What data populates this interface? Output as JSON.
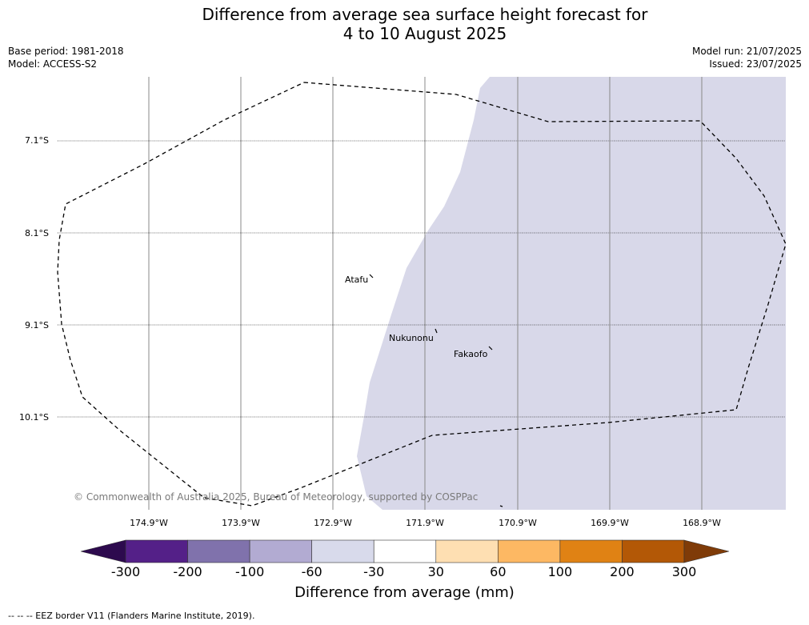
{
  "title": {
    "line1": "Difference from average sea surface height forecast for",
    "line2": "4 to 10 August 2025"
  },
  "meta": {
    "base_period": "Base period: 1981-2018",
    "model": "Model: ACCESS-S2",
    "model_run": "Model run: 21/07/2025",
    "issued": "Issued: 23/07/2025"
  },
  "map": {
    "lat_labels": [
      "7.1°S",
      "8.1°S",
      "9.1°S",
      "10.1°S"
    ],
    "lon_labels": [
      "174.9°W",
      "173.9°W",
      "172.9°W",
      "171.9°W",
      "170.9°W",
      "169.9°W",
      "168.9°W"
    ],
    "places": [
      "Atafu",
      "Nukunonu",
      "Fakaofo"
    ],
    "copyright": "© Commonwealth of Australia 2025, Bureau of Meteorology, supported by COSPPac",
    "region_color": "#d8d8e9",
    "region_class": "-60 to -30"
  },
  "colorbar": {
    "ticks": [
      "-300",
      "-200",
      "-100",
      "-60",
      "-30",
      "30",
      "60",
      "100",
      "200",
      "300"
    ],
    "colors": [
      "#2d0a4e",
      "#542088",
      "#8072ac",
      "#b2abd2",
      "#d8daeb",
      "#ffffff",
      "#fedfb2",
      "#fdb863",
      "#e08214",
      "#b35806",
      "#7f3b08"
    ],
    "title": "Difference from average (mm)"
  },
  "footnote": "--  --  -- EEZ border V11 (Flanders Marine Institute, 2019)."
}
